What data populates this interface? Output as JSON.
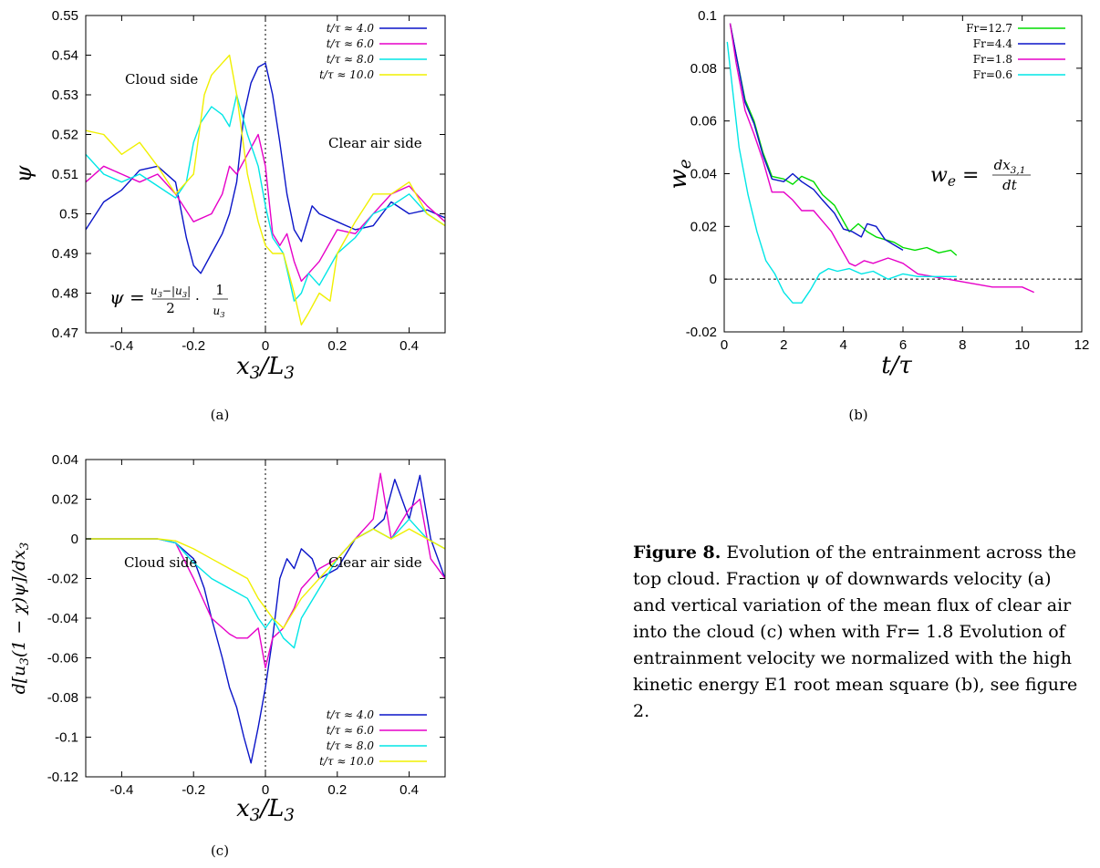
{
  "chart_data": [
    {
      "id": "a",
      "type": "line",
      "xlabel": "x3/L3",
      "ylabel": "ψ",
      "xlim": [
        -0.5,
        0.5
      ],
      "ylim": [
        0.47,
        0.55
      ],
      "xticks": [
        "-0.4",
        "-0.2",
        "0",
        "0.2",
        "0.4"
      ],
      "yticks": [
        "0.47",
        "0.48",
        "0.49",
        "0.5",
        "0.51",
        "0.52",
        "0.53",
        "0.54",
        "0.55"
      ],
      "legend_position": "top-right",
      "annotations": [
        "Cloud side",
        "Clear air side",
        "ψ = (u3−|u3|)/2 · 1/u3"
      ],
      "vline": 0,
      "series": [
        {
          "name": "t/τ ≈ 4.0",
          "color": "#0a14c8",
          "x": [
            -0.5,
            -0.45,
            -0.4,
            -0.35,
            -0.3,
            -0.25,
            -0.22,
            -0.2,
            -0.18,
            -0.15,
            -0.12,
            -0.1,
            -0.08,
            -0.06,
            -0.04,
            -0.02,
            0,
            0.02,
            0.04,
            0.06,
            0.08,
            0.1,
            0.13,
            0.15,
            0.2,
            0.25,
            0.3,
            0.35,
            0.4,
            0.45,
            0.5
          ],
          "y": [
            0.496,
            0.503,
            0.506,
            0.511,
            0.512,
            0.508,
            0.494,
            0.487,
            0.485,
            0.49,
            0.495,
            0.5,
            0.508,
            0.525,
            0.533,
            0.537,
            0.538,
            0.53,
            0.518,
            0.505,
            0.496,
            0.493,
            0.502,
            0.5,
            0.498,
            0.496,
            0.497,
            0.503,
            0.5,
            0.501,
            0.499
          ]
        },
        {
          "name": "t/τ ≈ 6.0",
          "color": "#e600c8",
          "x": [
            -0.5,
            -0.45,
            -0.4,
            -0.35,
            -0.3,
            -0.25,
            -0.2,
            -0.15,
            -0.12,
            -0.1,
            -0.08,
            -0.05,
            -0.02,
            0,
            0.02,
            0.04,
            0.06,
            0.08,
            0.1,
            0.12,
            0.15,
            0.2,
            0.25,
            0.3,
            0.35,
            0.4,
            0.45,
            0.5
          ],
          "y": [
            0.508,
            0.512,
            0.51,
            0.508,
            0.51,
            0.505,
            0.498,
            0.5,
            0.505,
            0.512,
            0.51,
            0.515,
            0.52,
            0.512,
            0.495,
            0.492,
            0.495,
            0.488,
            0.483,
            0.485,
            0.488,
            0.496,
            0.495,
            0.5,
            0.505,
            0.507,
            0.502,
            0.498
          ]
        },
        {
          "name": "t/τ ≈ 8.0",
          "color": "#00e6e6",
          "x": [
            -0.5,
            -0.45,
            -0.4,
            -0.35,
            -0.3,
            -0.25,
            -0.22,
            -0.2,
            -0.18,
            -0.15,
            -0.12,
            -0.1,
            -0.08,
            -0.05,
            -0.02,
            0,
            0.02,
            0.05,
            0.08,
            0.1,
            0.12,
            0.15,
            0.2,
            0.25,
            0.3,
            0.35,
            0.4,
            0.45,
            0.5
          ],
          "y": [
            0.515,
            0.51,
            0.508,
            0.51,
            0.507,
            0.504,
            0.508,
            0.518,
            0.523,
            0.527,
            0.525,
            0.522,
            0.53,
            0.52,
            0.512,
            0.502,
            0.494,
            0.49,
            0.478,
            0.48,
            0.485,
            0.482,
            0.49,
            0.494,
            0.5,
            0.502,
            0.505,
            0.5,
            0.497
          ]
        },
        {
          "name": "t/τ ≈ 10.0",
          "color": "#f0f000",
          "x": [
            -0.5,
            -0.45,
            -0.4,
            -0.35,
            -0.3,
            -0.25,
            -0.2,
            -0.17,
            -0.15,
            -0.12,
            -0.1,
            -0.08,
            -0.05,
            -0.02,
            0,
            0.02,
            0.05,
            0.08,
            0.1,
            0.12,
            0.15,
            0.18,
            0.2,
            0.25,
            0.3,
            0.35,
            0.4,
            0.45,
            0.5
          ],
          "y": [
            0.521,
            0.52,
            0.515,
            0.518,
            0.512,
            0.505,
            0.51,
            0.53,
            0.535,
            0.538,
            0.54,
            0.53,
            0.51,
            0.498,
            0.492,
            0.49,
            0.49,
            0.48,
            0.472,
            0.475,
            0.48,
            0.478,
            0.49,
            0.498,
            0.505,
            0.505,
            0.508,
            0.5,
            0.497
          ]
        }
      ]
    },
    {
      "id": "b",
      "type": "line",
      "xlabel": "t/τ",
      "ylabel": "we",
      "xlim": [
        0,
        12
      ],
      "ylim": [
        -0.02,
        0.1
      ],
      "xticks": [
        "0",
        "2",
        "4",
        "6",
        "8",
        "10",
        "12"
      ],
      "yticks": [
        "-0.02",
        "0",
        "0.02",
        "0.04",
        "0.06",
        "0.08",
        "0.1"
      ],
      "legend_position": "top-right",
      "annotations": [
        "we = dx3,1/dt"
      ],
      "hline": 0,
      "series": [
        {
          "name": "Fr=12.7",
          "color": "#00dc00",
          "x": [
            0.2,
            0.4,
            0.7,
            1.0,
            1.3,
            1.6,
            2.0,
            2.3,
            2.6,
            3.0,
            3.3,
            3.7,
            4.0,
            4.2,
            4.5,
            4.8,
            5.1,
            5.4,
            5.7,
            6.0,
            6.4,
            6.8,
            7.2,
            7.6,
            7.8
          ],
          "y": [
            0.097,
            0.085,
            0.068,
            0.06,
            0.048,
            0.039,
            0.038,
            0.036,
            0.039,
            0.037,
            0.032,
            0.028,
            0.022,
            0.018,
            0.021,
            0.018,
            0.016,
            0.015,
            0.014,
            0.012,
            0.011,
            0.012,
            0.01,
            0.011,
            0.009
          ]
        },
        {
          "name": "Fr=4.4",
          "color": "#0a14c8",
          "x": [
            0.2,
            0.4,
            0.7,
            1.0,
            1.3,
            1.6,
            2.0,
            2.3,
            2.6,
            3.0,
            3.3,
            3.7,
            4.0,
            4.3,
            4.6,
            4.8,
            5.1,
            5.4,
            5.7,
            6.0
          ],
          "y": [
            0.097,
            0.085,
            0.067,
            0.059,
            0.047,
            0.038,
            0.037,
            0.04,
            0.037,
            0.034,
            0.03,
            0.025,
            0.019,
            0.018,
            0.016,
            0.021,
            0.02,
            0.015,
            0.013,
            0.011
          ]
        },
        {
          "name": "Fr=1.8",
          "color": "#e600c8",
          "x": [
            0.2,
            0.4,
            0.7,
            1.0,
            1.3,
            1.6,
            2.0,
            2.3,
            2.6,
            3.0,
            3.3,
            3.6,
            3.9,
            4.2,
            4.4,
            4.7,
            5.0,
            5.5,
            6.0,
            6.5,
            7.0,
            7.5,
            8.0,
            8.5,
            9.0,
            9.5,
            10.0,
            10.4
          ],
          "y": [
            0.097,
            0.082,
            0.064,
            0.055,
            0.045,
            0.033,
            0.033,
            0.03,
            0.026,
            0.026,
            0.022,
            0.018,
            0.012,
            0.006,
            0.005,
            0.007,
            0.006,
            0.008,
            0.006,
            0.002,
            0.001,
            0.0,
            -0.001,
            -0.002,
            -0.003,
            -0.003,
            -0.003,
            -0.005
          ]
        },
        {
          "name": "Fr=0.6",
          "color": "#00e6e6",
          "x": [
            0.1,
            0.3,
            0.5,
            0.8,
            1.1,
            1.4,
            1.7,
            2.0,
            2.3,
            2.6,
            2.9,
            3.2,
            3.5,
            3.8,
            4.2,
            4.6,
            5.0,
            5.5,
            6.0,
            6.5,
            7.0,
            7.5,
            7.8
          ],
          "y": [
            0.09,
            0.07,
            0.05,
            0.032,
            0.018,
            0.007,
            0.002,
            -0.005,
            -0.009,
            -0.009,
            -0.004,
            0.002,
            0.004,
            0.003,
            0.004,
            0.002,
            0.003,
            0.0,
            0.002,
            0.001,
            0.001,
            0.001,
            0.001
          ]
        }
      ]
    },
    {
      "id": "c",
      "type": "line",
      "xlabel": "x3/L3",
      "ylabel": "d[u3(1 − χ)ψ]/dx3",
      "xlim": [
        -0.5,
        0.5
      ],
      "ylim": [
        -0.12,
        0.04
      ],
      "xticks": [
        "-0.4",
        "-0.2",
        "0",
        "0.2",
        "0.4"
      ],
      "yticks": [
        "-0.12",
        "-0.1",
        "-0.08",
        "-0.06",
        "-0.04",
        "-0.02",
        "0",
        "0.02",
        "0.04"
      ],
      "legend_position": "bottom-right",
      "annotations": [
        "Cloud side",
        "Clear air side"
      ],
      "vline": 0,
      "series": [
        {
          "name": "t/τ ≈ 4.0",
          "color": "#0a14c8",
          "x": [
            -0.5,
            -0.4,
            -0.3,
            -0.25,
            -0.2,
            -0.17,
            -0.15,
            -0.12,
            -0.1,
            -0.08,
            -0.06,
            -0.04,
            -0.02,
            0,
            0.02,
            0.04,
            0.06,
            0.08,
            0.1,
            0.13,
            0.15,
            0.2,
            0.25,
            0.3,
            0.33,
            0.36,
            0.4,
            0.43,
            0.46,
            0.5
          ],
          "y": [
            0,
            0,
            0,
            -0.002,
            -0.01,
            -0.025,
            -0.04,
            -0.06,
            -0.075,
            -0.085,
            -0.1,
            -0.113,
            -0.095,
            -0.075,
            -0.05,
            -0.02,
            -0.01,
            -0.015,
            -0.005,
            -0.01,
            -0.02,
            -0.015,
            0.0,
            0.005,
            0.01,
            0.03,
            0.01,
            0.032,
            0.0,
            -0.02
          ]
        },
        {
          "name": "t/τ ≈ 6.0",
          "color": "#e600c8",
          "x": [
            -0.5,
            -0.4,
            -0.3,
            -0.25,
            -0.2,
            -0.15,
            -0.1,
            -0.08,
            -0.05,
            -0.02,
            0,
            0.02,
            0.05,
            0.08,
            0.1,
            0.15,
            0.2,
            0.25,
            0.3,
            0.32,
            0.35,
            0.4,
            0.43,
            0.46,
            0.5
          ],
          "y": [
            0,
            0,
            0,
            -0.002,
            -0.02,
            -0.04,
            -0.048,
            -0.05,
            -0.05,
            -0.045,
            -0.065,
            -0.05,
            -0.045,
            -0.035,
            -0.025,
            -0.015,
            -0.01,
            0.0,
            0.01,
            0.033,
            0.0,
            0.015,
            0.02,
            -0.01,
            -0.02
          ]
        },
        {
          "name": "t/τ ≈ 8.0",
          "color": "#00e6e6",
          "x": [
            -0.5,
            -0.4,
            -0.3,
            -0.25,
            -0.2,
            -0.15,
            -0.1,
            -0.05,
            -0.02,
            0,
            0.02,
            0.05,
            0.08,
            0.1,
            0.15,
            0.2,
            0.25,
            0.3,
            0.35,
            0.4,
            0.45,
            0.5
          ],
          "y": [
            0,
            0,
            0,
            -0.002,
            -0.012,
            -0.02,
            -0.025,
            -0.03,
            -0.04,
            -0.045,
            -0.04,
            -0.05,
            -0.055,
            -0.04,
            -0.025,
            -0.01,
            0.0,
            0.005,
            0.0,
            0.01,
            0.0,
            -0.005
          ]
        },
        {
          "name": "t/τ ≈ 10.0",
          "color": "#f0f000",
          "x": [
            -0.5,
            -0.4,
            -0.3,
            -0.25,
            -0.2,
            -0.15,
            -0.1,
            -0.05,
            -0.02,
            0,
            0.02,
            0.05,
            0.1,
            0.15,
            0.2,
            0.25,
            0.3,
            0.35,
            0.4,
            0.45,
            0.5
          ],
          "y": [
            0,
            0,
            0,
            -0.001,
            -0.005,
            -0.01,
            -0.015,
            -0.02,
            -0.03,
            -0.035,
            -0.04,
            -0.045,
            -0.03,
            -0.02,
            -0.01,
            0.0,
            0.005,
            0.0,
            0.005,
            0.0,
            -0.005
          ]
        }
      ]
    }
  ],
  "labels": {
    "a": "(a)",
    "b": "(b)",
    "c": "(c)"
  },
  "caption": {
    "figure_label": "Figure 8.",
    "text": " Evolution of the entrainment across the top cloud. Fraction ψ of downwards velocity (a) and vertical variation of the mean flux of clear air into the cloud (c) when with Fr= 1.8 Evolution of entrainment velocity we normalized with the high kinetic energy E1 root mean square (b), see figure 2."
  }
}
